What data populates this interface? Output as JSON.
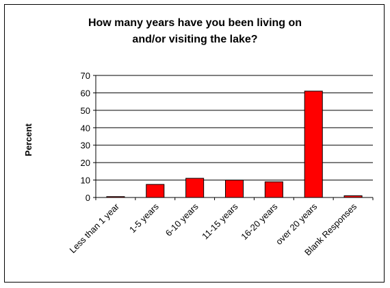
{
  "chart_data": {
    "type": "bar",
    "title_lines": [
      "How many years have you been living on",
      "and/or visiting the lake?"
    ],
    "ylabel": "Percent",
    "xlabel": "",
    "categories": [
      "Less than 1 year",
      "1-5 years",
      "6-10 years",
      "11-15 years",
      "16-20 years",
      "over 20 years",
      "Blank Responses"
    ],
    "values": [
      0.5,
      7.5,
      11,
      10,
      9,
      61,
      1
    ],
    "ylim": [
      0,
      70
    ],
    "yticks": [
      0,
      10,
      20,
      30,
      40,
      50,
      60,
      70
    ],
    "grid": true,
    "bar_color": "#ff0000",
    "legend": "none"
  }
}
